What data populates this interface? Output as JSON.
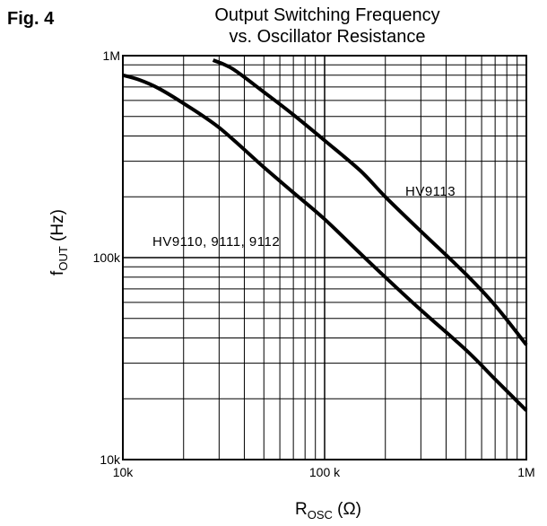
{
  "figure_label": "Fig. 4",
  "chart_data": {
    "type": "line",
    "title": "Output Switching Frequency",
    "subtitle": "vs. Oscillator Resistance",
    "x_scale": "log",
    "y_scale": "log",
    "xlim": [
      10000,
      1000000
    ],
    "ylim": [
      10000,
      1000000
    ],
    "xlabel": {
      "main": "R",
      "sub": "OSC",
      "suffix": " (Ω)"
    },
    "ylabel": {
      "main": "f",
      "sub": "OUT",
      "suffix": " (Hz)"
    },
    "x_ticks": [
      {
        "value": 10000,
        "label": "10k"
      },
      {
        "value": 100000,
        "label": "100 k"
      },
      {
        "value": 1000000,
        "label": "1M"
      }
    ],
    "y_ticks": [
      {
        "value": 10000,
        "label": "10k"
      },
      {
        "value": 100000,
        "label": "100k"
      },
      {
        "value": 1000000,
        "label": "1M"
      }
    ],
    "grid": true,
    "series": [
      {
        "name": "HV9113",
        "color": "#000000",
        "x": [
          28000,
          35000,
          50000,
          70000,
          100000,
          150000,
          200000,
          300000,
          500000,
          700000,
          1000000
        ],
        "y": [
          950000,
          860000,
          660000,
          510000,
          380000,
          270000,
          200000,
          135000,
          83000,
          58000,
          37000
        ]
      },
      {
        "name": "HV9110, 9111, 9112",
        "color": "#000000",
        "x": [
          10000,
          12000,
          15000,
          20000,
          30000,
          50000,
          70000,
          100000,
          150000,
          200000,
          300000,
          500000,
          700000,
          1000000
        ],
        "y": [
          800000,
          760000,
          690000,
          580000,
          440000,
          280000,
          210000,
          155000,
          105000,
          80000,
          55000,
          35000,
          25000,
          17500
        ]
      }
    ],
    "annotations": [
      {
        "text": "HV9113",
        "series": "HV9113"
      },
      {
        "text": "HV9110, 9111, 9112",
        "series": "HV9110, 9111, 9112"
      }
    ]
  }
}
